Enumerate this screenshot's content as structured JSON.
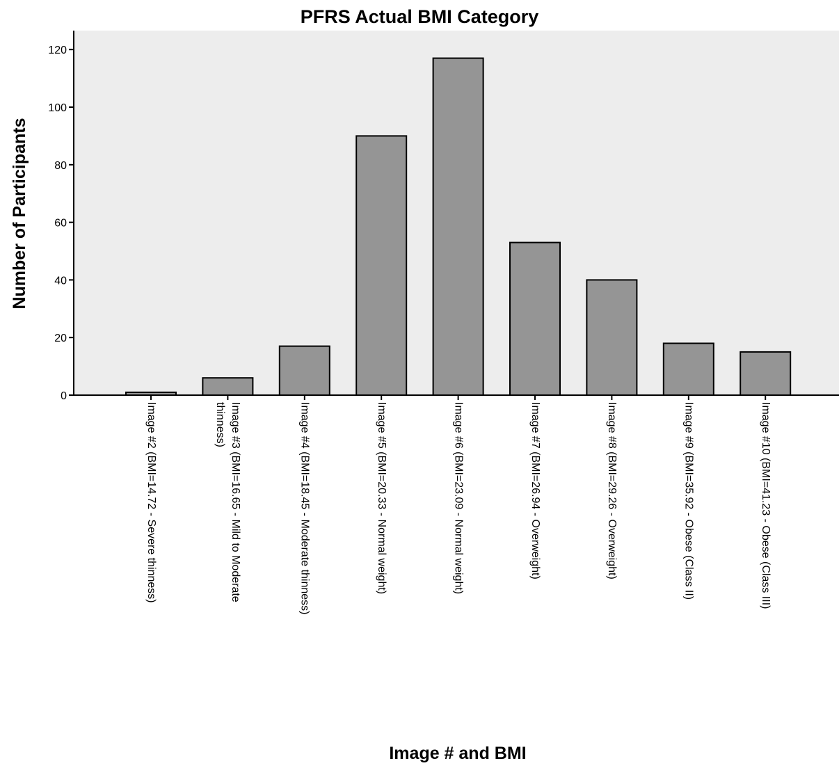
{
  "colors": {
    "plot_background": "#ededed",
    "bar_fill": "#959595",
    "bar_stroke": "#000000",
    "axis": "#000000"
  },
  "chart_data": {
    "type": "bar",
    "title": "PFRS Actual BMI Category",
    "xlabel": "Image # and BMI",
    "ylabel": "Number of Participants",
    "ylim": [
      0,
      127
    ],
    "yticks": [
      0,
      20,
      40,
      60,
      80,
      100,
      120
    ],
    "grid": false,
    "legend": "none",
    "categories": [
      [
        "Image #2 (BMI=14.72 - Severe thinness)"
      ],
      [
        "Image #3 (BMI=16.65 - Mild to Moderate",
        "thinness)"
      ],
      [
        "Image #4 (BMI=18.45 - Moderate thinness)"
      ],
      [
        "Image #5 (BMI=20.33 - Normal weight)"
      ],
      [
        "Image #6 (BMI=23.09 - Normal weight)"
      ],
      [
        "Image #7 (BMI=26.94 - Overweight)"
      ],
      [
        "Image #8 (BMI=29.26 - Overweight)"
      ],
      [
        "Image #9 (BMI=35.92 - Obese (Class II)"
      ],
      [
        "Image #10 (BMI=41.23 - Obese (Class III)"
      ]
    ],
    "values": [
      1,
      6,
      17,
      90,
      117,
      53,
      40,
      18,
      15
    ]
  }
}
